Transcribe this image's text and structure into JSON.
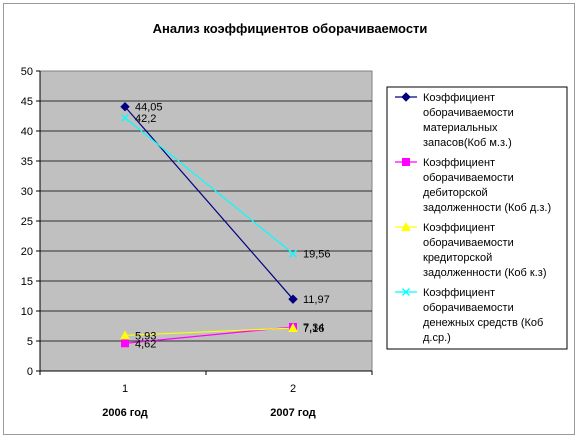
{
  "chart_data": {
    "type": "line",
    "title": "Анализ коэффициентов оборачиваемости",
    "xlabel": "",
    "ylabel": "",
    "ylim": [
      0,
      50
    ],
    "yticks": [
      "0",
      "5",
      "10",
      "15",
      "20",
      "25",
      "30",
      "35",
      "40",
      "45",
      "50"
    ],
    "categories": [
      "1",
      "2"
    ],
    "category_names": [
      "2006 год",
      "2007 год"
    ],
    "grid": true,
    "legend_position": "right",
    "series": [
      {
        "name": "Коэффициент оборачиваемости материальных запасов(Коб м.з.)",
        "legend_lines": [
          "Коэффициент",
          "оборачиваемости",
          "материальных",
          "запасов(Коб м.з.)"
        ],
        "values": [
          44.05,
          11.97
        ],
        "labels": [
          "44,05",
          "11,97"
        ],
        "color": "#000080",
        "marker": "diamond"
      },
      {
        "name": "Коэффициент оборачиваемости дебиторской задолженности (Коб д.з.)",
        "legend_lines": [
          "Коэффициент",
          "оборачиваемости",
          "дебиторской",
          "задолженности (Коб д.з.)"
        ],
        "values": [
          4.62,
          7.34
        ],
        "labels": [
          "4,62",
          "7,34"
        ],
        "color": "#ff00ff",
        "marker": "square"
      },
      {
        "name": "Коэффициент оборачиваемости кредиторской задолженности (Коб к.з)",
        "legend_lines": [
          "Коэффициент",
          "оборачиваемости",
          "кредиторской",
          "задолженности (Коб к.з)"
        ],
        "values": [
          5.93,
          7.16
        ],
        "labels": [
          "5,93",
          "7,16"
        ],
        "color": "#ffff00",
        "marker": "triangle"
      },
      {
        "name": "Коэффициент оборачиваемости денежных средств (Коб д.ср.)",
        "legend_lines": [
          "Коэффициент",
          "оборачиваемости",
          "денежных средств (Коб",
          "д.ср.)"
        ],
        "values": [
          42.2,
          19.56
        ],
        "labels": [
          "42,2",
          "19,56"
        ],
        "color": "#00ffff",
        "marker": "x"
      }
    ]
  }
}
